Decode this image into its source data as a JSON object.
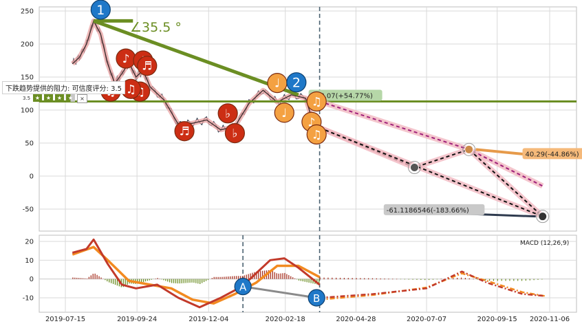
{
  "chart_data": [
    {
      "type": "line",
      "panel": "price",
      "ylim": [
        -70,
        255
      ],
      "y_ticks": [
        "250",
        "200",
        "150",
        "100",
        "50",
        "0",
        "-50"
      ],
      "grid": true,
      "price_polyline": [
        {
          "x": "2019-07-22",
          "y": 170
        },
        {
          "x": "2019-07-29",
          "y": 180
        },
        {
          "x": "2019-08-05",
          "y": 200
        },
        {
          "x": "2019-08-12",
          "y": 235
        },
        {
          "x": "2019-08-19",
          "y": 215
        },
        {
          "x": "2019-08-26",
          "y": 170
        },
        {
          "x": "2019-09-02",
          "y": 140
        },
        {
          "x": "2019-09-09",
          "y": 155
        },
        {
          "x": "2019-09-16",
          "y": 172
        },
        {
          "x": "2019-09-23",
          "y": 150
        },
        {
          "x": "2019-09-30",
          "y": 160
        },
        {
          "x": "2019-10-07",
          "y": 135
        },
        {
          "x": "2019-10-21",
          "y": 115
        },
        {
          "x": "2019-11-04",
          "y": 78
        },
        {
          "x": "2019-11-18",
          "y": 80
        },
        {
          "x": "2019-12-02",
          "y": 85
        },
        {
          "x": "2019-12-16",
          "y": 70
        },
        {
          "x": "2019-12-30",
          "y": 75
        },
        {
          "x": "2020-01-13",
          "y": 110
        },
        {
          "x": "2020-01-27",
          "y": 130
        },
        {
          "x": "2020-02-10",
          "y": 112
        },
        {
          "x": "2020-02-24",
          "y": 123
        },
        {
          "x": "2020-03-09",
          "y": 118
        },
        {
          "x": "2020-03-16",
          "y": 85
        },
        {
          "x": "2020-03-23",
          "y": 73
        }
      ],
      "resistance_level": 113,
      "trend_arrows": [
        {
          "from": {
            "x": "2019-08-12",
            "y": 235
          },
          "to": {
            "x": "2020-03-02",
            "y": 123
          }
        }
      ],
      "flat_line": {
        "from": {
          "x": "2019-08-12",
          "y": 235
        },
        "to": {
          "x": "2019-09-20",
          "y": 235
        }
      },
      "angle_label": "∠35.5 °",
      "projection_paths": [
        {
          "name": "magenta",
          "points": [
            {
              "x": "2020-03-23",
              "y": 113.07
            },
            {
              "x": "2020-08-18",
              "y": 40.29
            },
            {
              "x": "2020-10-30",
              "y": -15
            }
          ]
        },
        {
          "name": "black-1",
          "points": [
            {
              "x": "2020-03-23",
              "y": 73
            },
            {
              "x": "2020-06-25",
              "y": 13
            },
            {
              "x": "2020-08-18",
              "y": 40.29
            },
            {
              "x": "2020-10-30",
              "y": -61.12
            }
          ]
        },
        {
          "name": "black-2",
          "points": [
            {
              "x": "2020-03-23",
              "y": 73
            },
            {
              "x": "2020-10-30",
              "y": -61.12
            }
          ]
        }
      ],
      "end_points": [
        {
          "x": "2020-06-25",
          "y": 13,
          "color": "#555555"
        },
        {
          "x": "2020-08-18",
          "y": 40.29,
          "color": "#cc8a4b"
        },
        {
          "x": "2020-10-30",
          "y": -61.12,
          "color": "#333333"
        }
      ],
      "annotations": [
        {
          "label": "113.07(+54.77%)",
          "x": "2020-03-23",
          "y": 113.07,
          "color": "#b6d7a8",
          "text_color": "#333333"
        },
        {
          "label": "40.29(-44.86%)",
          "x": "2020-11-20",
          "y": 33,
          "color": "#f5b97a",
          "text_color": "#333333"
        },
        {
          "label": "-61.1186546(-183.66%)",
          "x": "2020-06-15",
          "y": -52,
          "color": "#c9c9c9",
          "text_color": "#333333"
        }
      ],
      "circle_markers": [
        {
          "label": "1",
          "x": "2019-08-19",
          "y": 252,
          "color": "#1f78c8"
        },
        {
          "label": "2",
          "x": "2020-02-29",
          "y": 142,
          "color": "#1f78c8"
        }
      ],
      "music_markers": [
        {
          "glyph": "♪",
          "x": "2019-09-13",
          "y": 178,
          "color": "#cc2e14"
        },
        {
          "glyph": "♪",
          "x": "2019-09-30",
          "y": 175,
          "color": "#cc2e14"
        },
        {
          "glyph": "♬",
          "x": "2019-10-04",
          "y": 167,
          "color": "#cc2e14"
        },
        {
          "glyph": "♫",
          "x": "2019-09-27",
          "y": 128,
          "color": "#cc2e14"
        },
        {
          "glyph": "♫",
          "x": "2019-08-29",
          "y": 128,
          "color": "#cc2e14"
        },
        {
          "glyph": "♫",
          "x": "2019-09-18",
          "y": 132,
          "color": "#cc2e14"
        },
        {
          "glyph": "♬",
          "x": "2019-11-10",
          "y": 68,
          "color": "#cc2e14"
        },
        {
          "glyph": "♭",
          "x": "2019-12-23",
          "y": 95,
          "color": "#cc2e14"
        },
        {
          "glyph": "♭",
          "x": "2019-12-30",
          "y": 65,
          "color": "#cc2e14"
        },
        {
          "glyph": "♩",
          "x": "2020-02-10",
          "y": 141,
          "color": "#f4a142"
        },
        {
          "glyph": "♩",
          "x": "2020-02-17",
          "y": 96,
          "color": "#f4a142"
        },
        {
          "glyph": "♫",
          "x": "2020-03-20",
          "y": 113,
          "color": "#f4a142"
        },
        {
          "glyph": "♪",
          "x": "2020-03-15",
          "y": 82,
          "color": "#f4a142"
        },
        {
          "glyph": "♫",
          "x": "2020-03-20",
          "y": 63,
          "color": "#f4a142"
        }
      ],
      "resistance_label": "下跌趋势提供的阻力: 可信度评分: 3.5",
      "resistance_score": "3.5",
      "stars": 3.5
    },
    {
      "type": "line",
      "panel": "macd",
      "ylim": [
        -17,
        23
      ],
      "y_ticks": [
        "20",
        "10",
        "0",
        "-10"
      ],
      "x_ticks": [
        "2019-07-15",
        "2019-09-24",
        "2019-12-04",
        "2020-02-18",
        "2020-04-28",
        "2020-07-07",
        "2020-09-15",
        "2020-11-06"
      ],
      "legend": "MACD (12,26,9)",
      "macd_line": [
        {
          "x": "2019-07-22",
          "y": 14
        },
        {
          "x": "2019-08-05",
          "y": 16
        },
        {
          "x": "2019-08-12",
          "y": 21
        },
        {
          "x": "2019-08-26",
          "y": 8
        },
        {
          "x": "2019-09-09",
          "y": -3
        },
        {
          "x": "2019-09-23",
          "y": -5
        },
        {
          "x": "2019-10-14",
          "y": -3
        },
        {
          "x": "2019-11-04",
          "y": -10
        },
        {
          "x": "2019-11-25",
          "y": -15
        },
        {
          "x": "2019-12-16",
          "y": -10
        },
        {
          "x": "2020-01-06",
          "y": -4
        },
        {
          "x": "2020-01-20",
          "y": 3
        },
        {
          "x": "2020-02-03",
          "y": 10
        },
        {
          "x": "2020-02-17",
          "y": 11
        },
        {
          "x": "2020-03-02",
          "y": 6
        },
        {
          "x": "2020-03-23",
          "y": -3
        }
      ],
      "signal_line": [
        {
          "x": "2019-07-22",
          "y": 13
        },
        {
          "x": "2019-08-12",
          "y": 17
        },
        {
          "x": "2019-08-26",
          "y": 10
        },
        {
          "x": "2019-09-16",
          "y": -1
        },
        {
          "x": "2019-10-07",
          "y": -3
        },
        {
          "x": "2019-10-28",
          "y": -5
        },
        {
          "x": "2019-11-18",
          "y": -11
        },
        {
          "x": "2019-12-09",
          "y": -13
        },
        {
          "x": "2019-12-30",
          "y": -8
        },
        {
          "x": "2020-01-20",
          "y": -2
        },
        {
          "x": "2020-02-10",
          "y": 7
        },
        {
          "x": "2020-03-02",
          "y": 7
        },
        {
          "x": "2020-03-23",
          "y": 1
        }
      ],
      "projected_macd": [
        {
          "x": "2020-03-23",
          "y": -10
        },
        {
          "x": "2020-05-15",
          "y": -8
        },
        {
          "x": "2020-07-07",
          "y": -5
        },
        {
          "x": "2020-08-11",
          "y": 4
        },
        {
          "x": "2020-09-05",
          "y": -2
        },
        {
          "x": "2020-10-10",
          "y": -8
        },
        {
          "x": "2020-11-01",
          "y": -9
        }
      ],
      "projected_signal": [
        {
          "x": "2020-03-23",
          "y": -11
        },
        {
          "x": "2020-05-15",
          "y": -8.5
        },
        {
          "x": "2020-07-07",
          "y": -4.5
        },
        {
          "x": "2020-08-11",
          "y": 3
        },
        {
          "x": "2020-09-05",
          "y": -1
        },
        {
          "x": "2020-10-10",
          "y": -7
        },
        {
          "x": "2020-11-01",
          "y": -9
        }
      ],
      "macd_markers": [
        {
          "label": "A",
          "x": "2020-01-07",
          "y": -4,
          "color": "#1f78c8"
        },
        {
          "label": "B",
          "x": "2020-03-20",
          "y": -10,
          "color": "#1f78c8"
        }
      ]
    }
  ]
}
